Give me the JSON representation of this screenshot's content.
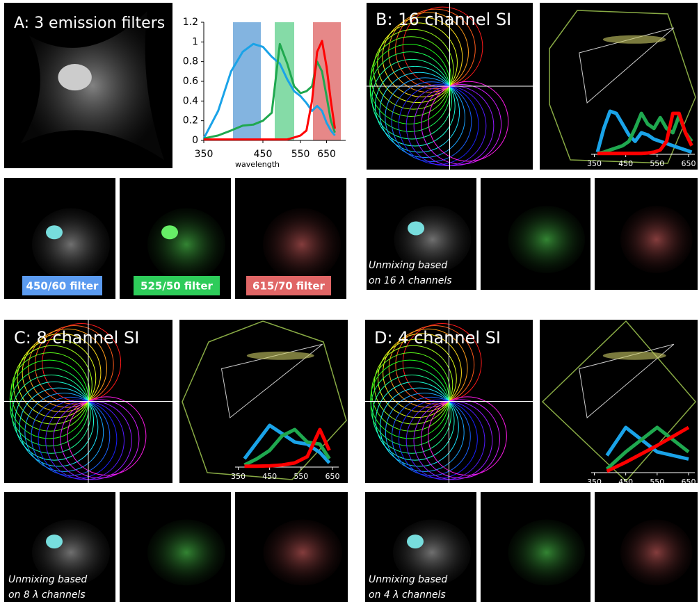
{
  "panels": [
    {
      "label": "A: 3 emission filters"
    },
    {
      "label": "B: 16 channel SI"
    },
    {
      "label": "C: 8 channel SI"
    },
    {
      "label": "D: 4 channel SI"
    }
  ],
  "filters": [
    {
      "label": "450/60 filter",
      "color": "#5b9bf0"
    },
    {
      "label": "525/50 filter",
      "color": "#2ecc5a"
    },
    {
      "label": "615/70 filter",
      "color": "#e06666"
    }
  ],
  "captions": [
    [
      "Unmixing based",
      "on 16 λ channels"
    ],
    [
      "Unmixing based",
      "on 8 λ channels"
    ],
    [
      "Unmixing based",
      "on 4 λ channels"
    ]
  ],
  "chart_data": [
    {
      "type": "line",
      "xlabel": "wavelength",
      "xscale": "reciprocal",
      "x": [
        350,
        370,
        390,
        410,
        430,
        450,
        470,
        490,
        510,
        530,
        550,
        570,
        590,
        610,
        630,
        650,
        670,
        690
      ],
      "series": [
        {
          "color": "#1aa3e8",
          "values": [
            0.02,
            0.3,
            0.7,
            0.9,
            0.98,
            0.95,
            0.85,
            0.78,
            0.62,
            0.5,
            0.45,
            0.38,
            0.3,
            0.35,
            0.3,
            0.18,
            0.1,
            0.05
          ]
        },
        {
          "color": "#1fa84f",
          "values": [
            0.02,
            0.05,
            0.1,
            0.15,
            0.16,
            0.2,
            0.28,
            0.98,
            0.78,
            0.55,
            0.48,
            0.5,
            0.55,
            0.8,
            0.7,
            0.45,
            0.2,
            0.08
          ]
        },
        {
          "color": "#ff0000",
          "values": [
            0.01,
            0.01,
            0.01,
            0.01,
            0.01,
            0.01,
            0.01,
            0.01,
            0.01,
            0.03,
            0.05,
            0.1,
            0.4,
            0.9,
            1.01,
            0.75,
            0.4,
            0.12
          ]
        }
      ],
      "xlim": [
        350,
        750
      ],
      "xticks": [
        350,
        450,
        550,
        650
      ],
      "ylim": [
        0,
        1.2
      ],
      "yticks": [
        0,
        0.2,
        0.4,
        0.6,
        0.8,
        1,
        1.2
      ]
    },
    {
      "type": "line",
      "x": [
        360,
        380,
        400,
        420,
        440,
        460,
        480,
        500,
        520,
        540,
        560,
        580,
        600,
        620,
        640,
        660
      ],
      "series": [
        {
          "color": "#1aa3e8",
          "values": [
            0.05,
            0.6,
            1.0,
            0.95,
            0.7,
            0.45,
            0.3,
            0.5,
            0.45,
            0.35,
            0.3,
            0.25,
            0.2,
            0.15,
            0.1,
            0.05
          ]
        },
        {
          "color": "#1fa84f",
          "values": [
            0.02,
            0.05,
            0.1,
            0.15,
            0.2,
            0.3,
            0.6,
            0.95,
            0.7,
            0.6,
            0.85,
            0.6,
            0.5,
            0.9,
            0.5,
            0.3
          ]
        },
        {
          "color": "#ff0000",
          "values": [
            0.02,
            0.02,
            0.02,
            0.02,
            0.02,
            0.02,
            0.02,
            0.02,
            0.03,
            0.05,
            0.1,
            0.3,
            0.95,
            0.95,
            0.5,
            0.2
          ]
        }
      ],
      "xlim": [
        340,
        670
      ],
      "xticks": [
        350,
        450,
        550,
        650
      ],
      "ylim": [
        0,
        1
      ]
    },
    {
      "type": "line",
      "x": [
        370,
        410,
        450,
        490,
        530,
        570,
        610,
        640
      ],
      "series": [
        {
          "color": "#1aa3e8",
          "values": [
            0.2,
            0.6,
            1.0,
            0.8,
            0.6,
            0.55,
            0.35,
            0.1
          ]
        },
        {
          "color": "#1fa84f",
          "values": [
            0.05,
            0.2,
            0.4,
            0.75,
            0.9,
            0.6,
            0.55,
            0.2
          ]
        },
        {
          "color": "#ff0000",
          "values": [
            0.02,
            0.02,
            0.03,
            0.05,
            0.1,
            0.25,
            0.9,
            0.4
          ]
        }
      ],
      "xlim": [
        340,
        670
      ],
      "xticks": [
        350,
        450,
        550,
        650
      ],
      "ylim": [
        0,
        1
      ]
    },
    {
      "type": "line",
      "x": [
        390,
        450,
        550,
        650
      ],
      "series": [
        {
          "color": "#1aa3e8",
          "values": [
            0.38,
            1.0,
            0.46,
            0.3
          ]
        },
        {
          "color": "#1fa84f",
          "values": [
            0.08,
            0.46,
            1.0,
            0.46
          ]
        },
        {
          "color": "#ff0000",
          "values": [
            0.03,
            0.23,
            0.6,
            1.0
          ]
        }
      ],
      "xlim": [
        340,
        670
      ],
      "xticks": [
        350,
        450,
        550,
        650
      ],
      "ylim": [
        0,
        1
      ]
    }
  ]
}
